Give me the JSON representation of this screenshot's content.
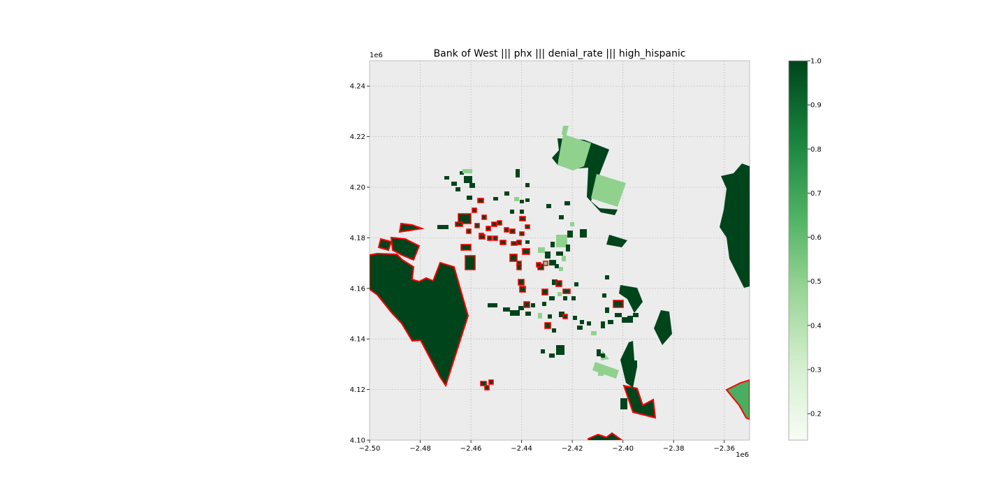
{
  "title": "Bank of West ||| phx ||| denial_rate ||| high_hispanic",
  "map": {
    "x_exponent_label": "1e6",
    "y_exponent_label": "1e6",
    "x_ticks": [
      "−2.50",
      "−2.48",
      "−2.46",
      "−2.44",
      "−2.42",
      "−2.40",
      "−2.38",
      "−2.36"
    ],
    "y_ticks": [
      "4.24",
      "4.22",
      "4.20",
      "4.18",
      "4.16",
      "4.14",
      "4.12",
      "4.10"
    ],
    "xlim": [
      -2.5,
      -2.35
    ],
    "ylim": [
      4.1,
      4.25
    ],
    "grid": true,
    "background_color": "#ececec",
    "highlight_outline_color": "#ff0000",
    "region_colors": {
      "dark_green": "#00441b",
      "light_green": "#90d18e",
      "mid_green": "#4aae62"
    }
  },
  "colorbar": {
    "min": 0.14,
    "max": 1.0,
    "tick_values": [
      1.0,
      0.9,
      0.8,
      0.7,
      0.6,
      0.5,
      0.4,
      0.3,
      0.2
    ],
    "tick_labels": [
      "1.0",
      "0.9",
      "0.8",
      "0.7",
      "0.6",
      "0.5",
      "0.4",
      "0.3",
      "0.2"
    ],
    "color_low": "#f7fcf5",
    "color_mid": "#74c476",
    "color_high": "#00441b"
  }
}
